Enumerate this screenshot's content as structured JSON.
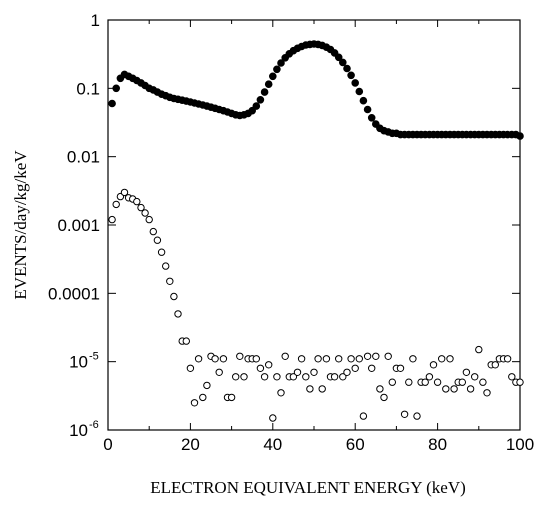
{
  "chart_data": {
    "type": "scatter",
    "xlabel": "ELECTRON EQUIVALENT ENERGY (keV)",
    "ylabel": "EVENTS/day/kg/keV",
    "xlim": [
      0,
      100
    ],
    "ylim": [
      1e-06,
      1
    ],
    "yscale": "log",
    "grid": false,
    "x_ticks": [
      {
        "value": 0,
        "label": "0"
      },
      {
        "value": 20,
        "label": "20"
      },
      {
        "value": 40,
        "label": "40"
      },
      {
        "value": 60,
        "label": "60"
      },
      {
        "value": 80,
        "label": "80"
      },
      {
        "value": 100,
        "label": "100"
      }
    ],
    "y_ticks": [
      {
        "value": 1,
        "label": "1",
        "sup": ""
      },
      {
        "value": 0.1,
        "label": "0.1",
        "sup": ""
      },
      {
        "value": 0.01,
        "label": "0.01",
        "sup": ""
      },
      {
        "value": 0.001,
        "label": "0.001",
        "sup": ""
      },
      {
        "value": 0.0001,
        "label": "0.0001",
        "sup": ""
      },
      {
        "value": 1e-05,
        "label": "10",
        "sup": "-5"
      },
      {
        "value": 1e-06,
        "label": "10",
        "sup": "-6"
      }
    ],
    "series": [
      {
        "marker": "filled-circle",
        "x": [
          1,
          2,
          3,
          4,
          5,
          6,
          7,
          8,
          9,
          10,
          11,
          12,
          13,
          14,
          15,
          16,
          17,
          18,
          19,
          20,
          21,
          22,
          23,
          24,
          25,
          26,
          27,
          28,
          29,
          30,
          31,
          32,
          33,
          34,
          35,
          36,
          37,
          38,
          39,
          40,
          41,
          42,
          43,
          44,
          45,
          46,
          47,
          48,
          49,
          50,
          51,
          52,
          53,
          54,
          55,
          56,
          57,
          58,
          59,
          60,
          61,
          62,
          63,
          64,
          65,
          66,
          67,
          68,
          69,
          70,
          71,
          72,
          73,
          74,
          75,
          76,
          77,
          78,
          79,
          80,
          81,
          82,
          83,
          84,
          85,
          86,
          87,
          88,
          89,
          90,
          91,
          92,
          93,
          94,
          95,
          96,
          97,
          98,
          99,
          100
        ],
        "y": [
          0.06,
          0.1,
          0.14,
          0.16,
          0.15,
          0.14,
          0.13,
          0.12,
          0.11,
          0.1,
          0.095,
          0.088,
          0.082,
          0.078,
          0.074,
          0.071,
          0.069,
          0.067,
          0.065,
          0.063,
          0.061,
          0.059,
          0.057,
          0.055,
          0.053,
          0.051,
          0.049,
          0.047,
          0.045,
          0.043,
          0.041,
          0.04,
          0.041,
          0.043,
          0.047,
          0.055,
          0.068,
          0.088,
          0.115,
          0.15,
          0.19,
          0.235,
          0.28,
          0.32,
          0.355,
          0.385,
          0.41,
          0.43,
          0.44,
          0.445,
          0.44,
          0.425,
          0.4,
          0.37,
          0.33,
          0.285,
          0.24,
          0.195,
          0.155,
          0.12,
          0.09,
          0.066,
          0.049,
          0.037,
          0.03,
          0.026,
          0.024,
          0.023,
          0.022,
          0.022,
          0.021,
          0.021,
          0.021,
          0.021,
          0.021,
          0.021,
          0.021,
          0.021,
          0.021,
          0.021,
          0.021,
          0.021,
          0.021,
          0.021,
          0.021,
          0.021,
          0.021,
          0.021,
          0.021,
          0.021,
          0.021,
          0.021,
          0.021,
          0.021,
          0.021,
          0.021,
          0.021,
          0.021,
          0.021,
          0.02
        ]
      },
      {
        "marker": "open-circle",
        "x": [
          1,
          2,
          3,
          4,
          5,
          6,
          7,
          8,
          9,
          10,
          11,
          12,
          13,
          14,
          15,
          16,
          17,
          18,
          19,
          20,
          21,
          22,
          23,
          24,
          25,
          26,
          27,
          28,
          29,
          30,
          31,
          32,
          33,
          34,
          35,
          36,
          37,
          38,
          39,
          40,
          41,
          42,
          43,
          44,
          45,
          46,
          47,
          48,
          49,
          50,
          51,
          52,
          53,
          54,
          55,
          56,
          57,
          58,
          59,
          60,
          61,
          62,
          63,
          64,
          65,
          66,
          67,
          68,
          69,
          70,
          71,
          72,
          73,
          74,
          75,
          76,
          77,
          78,
          79,
          80,
          81,
          82,
          83,
          84,
          85,
          86,
          87,
          88,
          89,
          90,
          91,
          92,
          93,
          94,
          95,
          96,
          97,
          98,
          99,
          100
        ],
        "y": [
          0.0012,
          0.002,
          0.0026,
          0.003,
          0.0025,
          0.0024,
          0.0022,
          0.0018,
          0.0015,
          0.0012,
          0.0008,
          0.0006,
          0.0004,
          0.00025,
          0.00015,
          9e-05,
          5e-05,
          2e-05,
          2e-05,
          8e-06,
          2.5e-06,
          1.1e-05,
          3e-06,
          4.5e-06,
          1.2e-05,
          1.1e-05,
          7e-06,
          1.1e-05,
          3e-06,
          3e-06,
          6e-06,
          1.2e-05,
          6e-06,
          1.1e-05,
          1.1e-05,
          1.1e-05,
          8e-06,
          6e-06,
          9e-06,
          1.5e-06,
          6e-06,
          3.5e-06,
          1.2e-05,
          6e-06,
          6e-06,
          7e-06,
          1.1e-05,
          6e-06,
          4e-06,
          7e-06,
          1.1e-05,
          4e-06,
          1.1e-05,
          6e-06,
          6e-06,
          1.1e-05,
          6e-06,
          7e-06,
          1.1e-05,
          8e-06,
          1.1e-05,
          1.6e-06,
          1.2e-05,
          8e-06,
          1.2e-05,
          4e-06,
          3e-06,
          1.2e-05,
          5e-06,
          8e-06,
          8e-06,
          1.7e-06,
          5e-06,
          1.1e-05,
          1.6e-06,
          5e-06,
          5e-06,
          6e-06,
          9e-06,
          5e-06,
          1.1e-05,
          4e-06,
          1.1e-05,
          4e-06,
          5e-06,
          5e-06,
          7e-06,
          4e-06,
          6e-06,
          1.5e-05,
          5e-06,
          3.5e-06,
          9e-06,
          9e-06,
          1.1e-05,
          1.1e-05,
          1.1e-05,
          6e-06,
          5e-06,
          5e-06
        ]
      }
    ]
  }
}
